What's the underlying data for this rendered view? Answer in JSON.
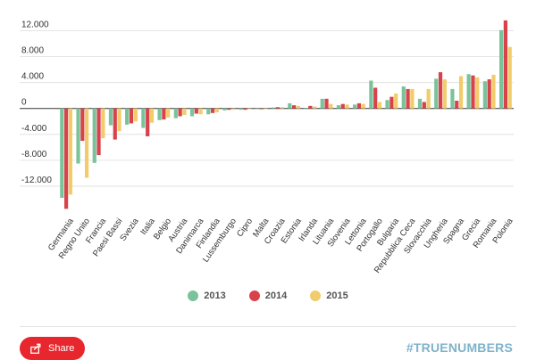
{
  "chart_data": {
    "type": "bar",
    "title": "",
    "xlabel": "",
    "ylabel": "",
    "ylim": [
      -16000,
      14000
    ],
    "yticks": [
      12000,
      8000,
      4000,
      0,
      -4000,
      -8000,
      -12000
    ],
    "ytick_labels": [
      "12.000",
      "8.000",
      "4.000",
      "0",
      "-4.000",
      "-8.000",
      "-12.000"
    ],
    "grid": true,
    "legend_position": "bottom",
    "categories": [
      "Germania",
      "Regno Unito",
      "Francia",
      "Paesi Bassi",
      "Svezia",
      "Italia",
      "Belgio",
      "Austria",
      "Danimarca",
      "Finlandia",
      "Lussemburgo",
      "Cipro",
      "Malta",
      "Croazia",
      "Estonia",
      "Irlanda",
      "Lituania",
      "Slovenia",
      "Lettonia",
      "Portogallo",
      "Bulgaria",
      "Repubblica Ceca",
      "Slovacchia",
      "Ungheria",
      "Spagna",
      "Grecia",
      "Romania",
      "Polonia"
    ],
    "series": [
      {
        "name": "2013",
        "color": "#7ac39a",
        "values": [
          -13800,
          -8500,
          -8400,
          -2600,
          -2500,
          -3000,
          -1800,
          -1500,
          -1200,
          -900,
          -300,
          -200,
          -100,
          150,
          800,
          100,
          1500,
          500,
          600,
          4300,
          1300,
          3400,
          1500,
          4600,
          3000,
          5300,
          4200,
          12100
        ]
      },
      {
        "name": "2014",
        "color": "#d9424b",
        "values": [
          -15500,
          -5000,
          -7200,
          -4800,
          -2300,
          -4300,
          -1700,
          -1200,
          -800,
          -700,
          -200,
          -200,
          -100,
          200,
          500,
          400,
          1500,
          700,
          800,
          3200,
          1800,
          3000,
          1000,
          5600,
          1200,
          5100,
          4500,
          13600
        ]
      },
      {
        "name": "2015",
        "color": "#f2cc6a",
        "values": [
          -13300,
          -10700,
          -4600,
          -3500,
          -2000,
          -2200,
          -1400,
          -1000,
          -900,
          -600,
          -200,
          -100,
          0,
          200,
          400,
          300,
          700,
          600,
          700,
          1000,
          2300,
          3000,
          3000,
          4500,
          5000,
          4800,
          5200,
          9500
        ]
      }
    ]
  },
  "share_label": "Share",
  "brand_label": "#TRUENUMBERS",
  "icons": {
    "share": "share-icon"
  }
}
